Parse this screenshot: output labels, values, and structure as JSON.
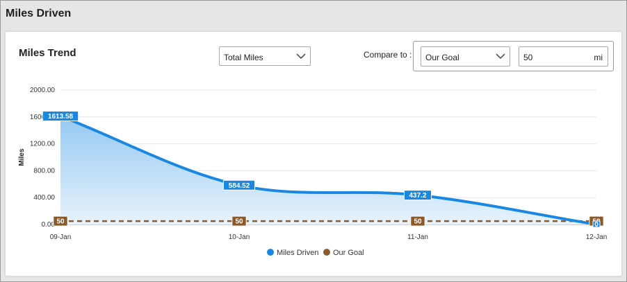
{
  "header": {
    "title": "Miles Driven"
  },
  "card": {
    "title": "Miles Trend",
    "metric_select": {
      "value": "Total Miles",
      "icon": "chevron-down-icon"
    },
    "compare": {
      "label": "Compare to :",
      "select_value": "Our Goal",
      "goal_value": "50",
      "unit": "mi"
    }
  },
  "colors": {
    "miles_series": "#1a87e0",
    "goal_series": "#8a5a2b",
    "area_top": "#94c8f2",
    "area_bottom": "#e8f3fc"
  },
  "chart_data": {
    "type": "area",
    "x": [
      "09-Jan",
      "10-Jan",
      "11-Jan",
      "12-Jan"
    ],
    "series": [
      {
        "name": "Miles Driven",
        "values": [
          1613.58,
          584.52,
          437.2,
          0
        ],
        "data_labels": [
          "1613.58",
          "584.52",
          "437.2",
          "0"
        ]
      },
      {
        "name": "Our Goal",
        "values": [
          50,
          50,
          50,
          50
        ],
        "data_labels": [
          "50",
          "50",
          "50",
          "50"
        ]
      }
    ],
    "ylabel": "Miles",
    "yticks": [
      "2000.00",
      "1600.00",
      "1200.00",
      "800.00",
      "400.00",
      "0.00"
    ],
    "ylim": [
      0,
      2000
    ],
    "grid": true,
    "legend_position": "bottom-center"
  }
}
